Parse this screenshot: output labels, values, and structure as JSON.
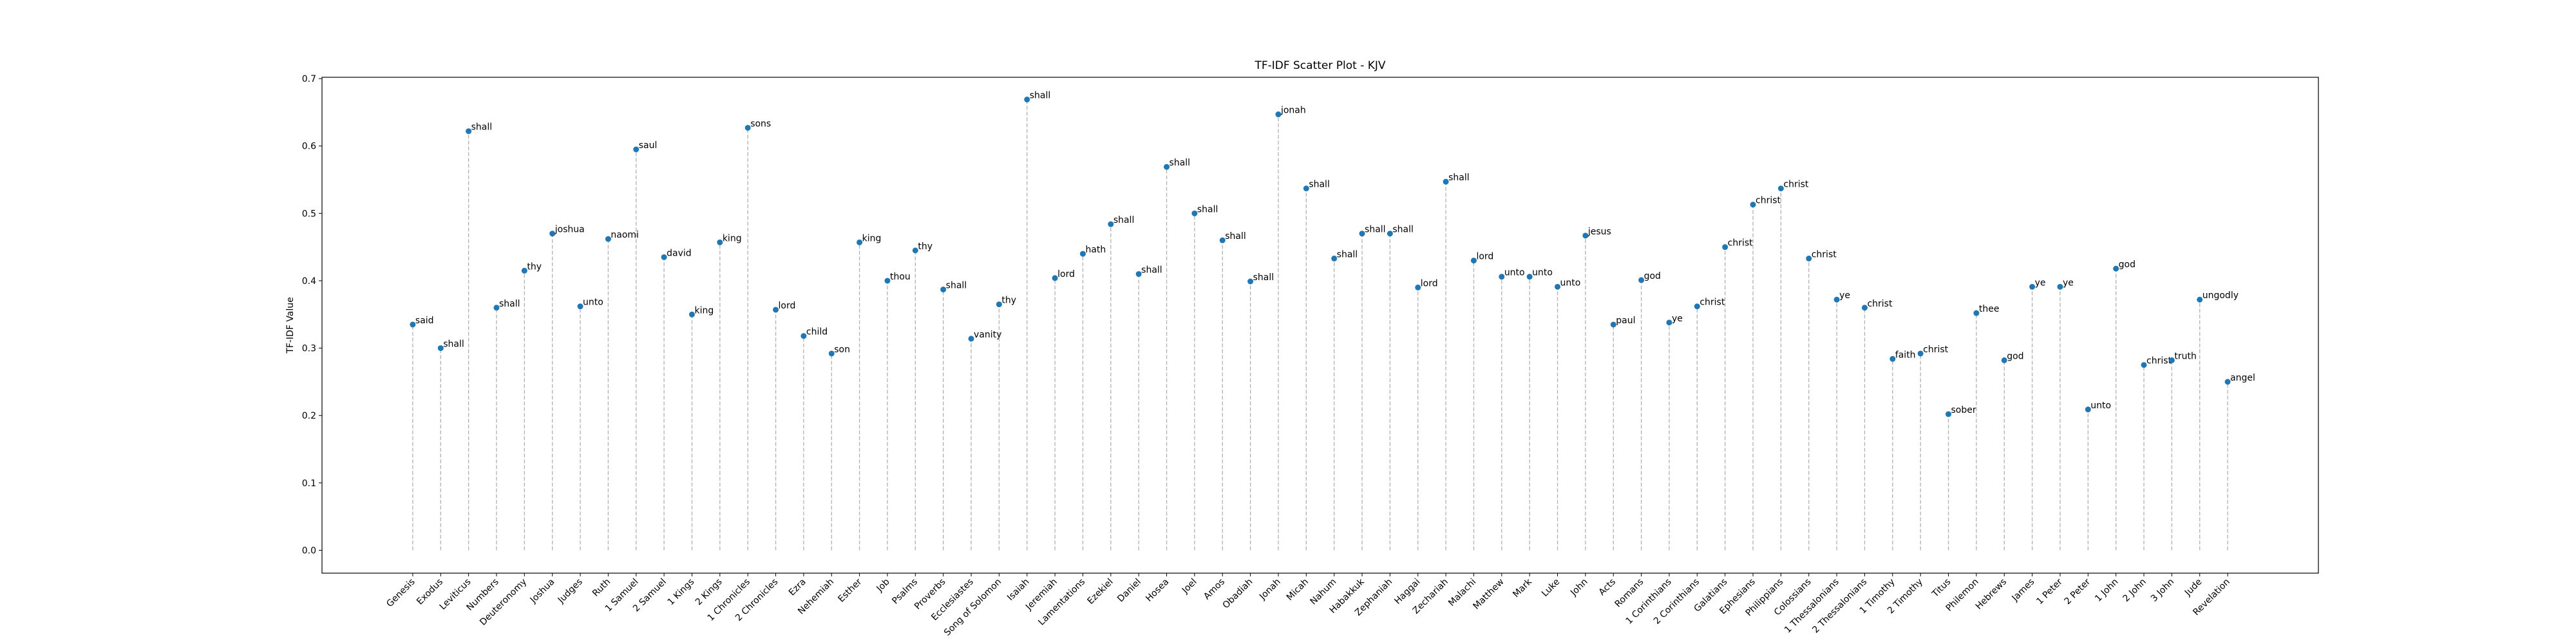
{
  "chart_data": {
    "type": "scatter",
    "title": "TF-IDF Scatter Plot - KJV",
    "y_label": "TF-IDF Value",
    "color": "#1f77b4",
    "stem_color": "#b0b0b0",
    "categories": [
      "Genesis",
      "Exodus",
      "Leviticus",
      "Numbers",
      "Deuteronomy",
      "Joshua",
      "Judges",
      "Ruth",
      "1 Samuel",
      "2 Samuel",
      "1 Kings",
      "2 Kings",
      "1 Chronicles",
      "2 Chronicles",
      "Ezra",
      "Nehemiah",
      "Esther",
      "Job",
      "Psalms",
      "Proverbs",
      "Ecclesiastes",
      "Song of Solomon",
      "Isaiah",
      "Jeremiah",
      "Lamentations",
      "Ezekiel",
      "Daniel",
      "Hosea",
      "Joel",
      "Amos",
      "Obadiah",
      "Jonah",
      "Micah",
      "Nahum",
      "Habakkuk",
      "Zephaniah",
      "Haggai",
      "Zechariah",
      "Malachi",
      "Matthew",
      "Mark",
      "Luke",
      "John",
      "Acts",
      "Romans",
      "1 Corinthians",
      "2 Corinthians",
      "Galatians",
      "Ephesians",
      "Philippians",
      "Colossians",
      "1 Thessalonians",
      "2 Thessalonians",
      "1 Timothy",
      "2 Timothy",
      "Titus",
      "Philemon",
      "Hebrews",
      "James",
      "1 Peter",
      "2 Peter",
      "1 John",
      "2 John",
      "3 John",
      "Jude",
      "Revelation"
    ],
    "values": [
      0.335,
      0.3,
      0.622,
      0.36,
      0.415,
      0.47,
      0.362,
      0.462,
      0.595,
      0.435,
      0.35,
      0.457,
      0.627,
      0.357,
      0.318,
      0.292,
      0.457,
      0.4,
      0.445,
      0.387,
      0.314,
      0.365,
      0.669,
      0.404,
      0.44,
      0.484,
      0.41,
      0.569,
      0.5,
      0.46,
      0.399,
      0.647,
      0.537,
      0.433,
      0.47,
      0.47,
      0.39,
      0.547,
      0.43,
      0.406,
      0.406,
      0.391,
      0.467,
      0.335,
      0.401,
      0.338,
      0.362,
      0.45,
      0.513,
      0.537,
      0.433,
      0.372,
      0.36,
      0.284,
      0.292,
      0.202,
      0.352,
      0.282,
      0.391,
      0.391,
      0.209,
      0.418,
      0.275,
      0.282,
      0.372,
      0.25
    ],
    "annotations": [
      "said",
      "shall",
      "shall",
      "shall",
      "thy",
      "joshua",
      "unto",
      "naomi",
      "saul",
      "david",
      "king",
      "king",
      "sons",
      "lord",
      "child",
      "son",
      "king",
      "thou",
      "thy",
      "shall",
      "vanity",
      "thy",
      "shall",
      "lord",
      "hath",
      "shall",
      "shall",
      "shall",
      "shall",
      "shall",
      "shall",
      "jonah",
      "shall",
      "shall",
      "shall",
      "shall",
      "lord",
      "shall",
      "lord",
      "unto",
      "unto",
      "unto",
      "jesus",
      "paul",
      "god",
      "ye",
      "christ",
      "christ",
      "christ",
      "christ",
      "christ",
      "ye",
      "christ",
      "faith",
      "christ",
      "sober",
      "thee",
      "god",
      "ye",
      "ye",
      "unto",
      "god",
      "christ",
      "truth",
      "ungodly",
      "angel"
    ],
    "annotation_colors": [
      "#000",
      "#000",
      "#000",
      "#000",
      "#000",
      "#000",
      "#000",
      "#000",
      "#000",
      "#000",
      "#000",
      "#000",
      "#000",
      "#000",
      "#000",
      "#000",
      "#000",
      "#000",
      "#000",
      "#000",
      "#000",
      "#000",
      "#008000",
      "#000",
      "#000",
      "#000",
      "#000",
      "#000",
      "#000",
      "#000",
      "#000",
      "#000",
      "#000",
      "#000",
      "#000",
      "#000",
      "#000",
      "#000",
      "#000",
      "#000",
      "#000",
      "#000",
      "#000",
      "#000",
      "#000",
      "#000",
      "#000",
      "#000",
      "#000",
      "#000",
      "#000",
      "#000",
      "#000",
      "#000",
      "#000",
      "#ff0000",
      "#000",
      "#000",
      "#000",
      "#000",
      "#000",
      "#000",
      "#000",
      "#000",
      "#000",
      "#000"
    ],
    "ylim": [
      -0.034,
      0.702
    ],
    "yticks": [
      {
        "value": 0,
        "label": "0.0"
      },
      0.1,
      0.2,
      0.3,
      0.4,
      0.5,
      0.6,
      0.7
    ]
  }
}
